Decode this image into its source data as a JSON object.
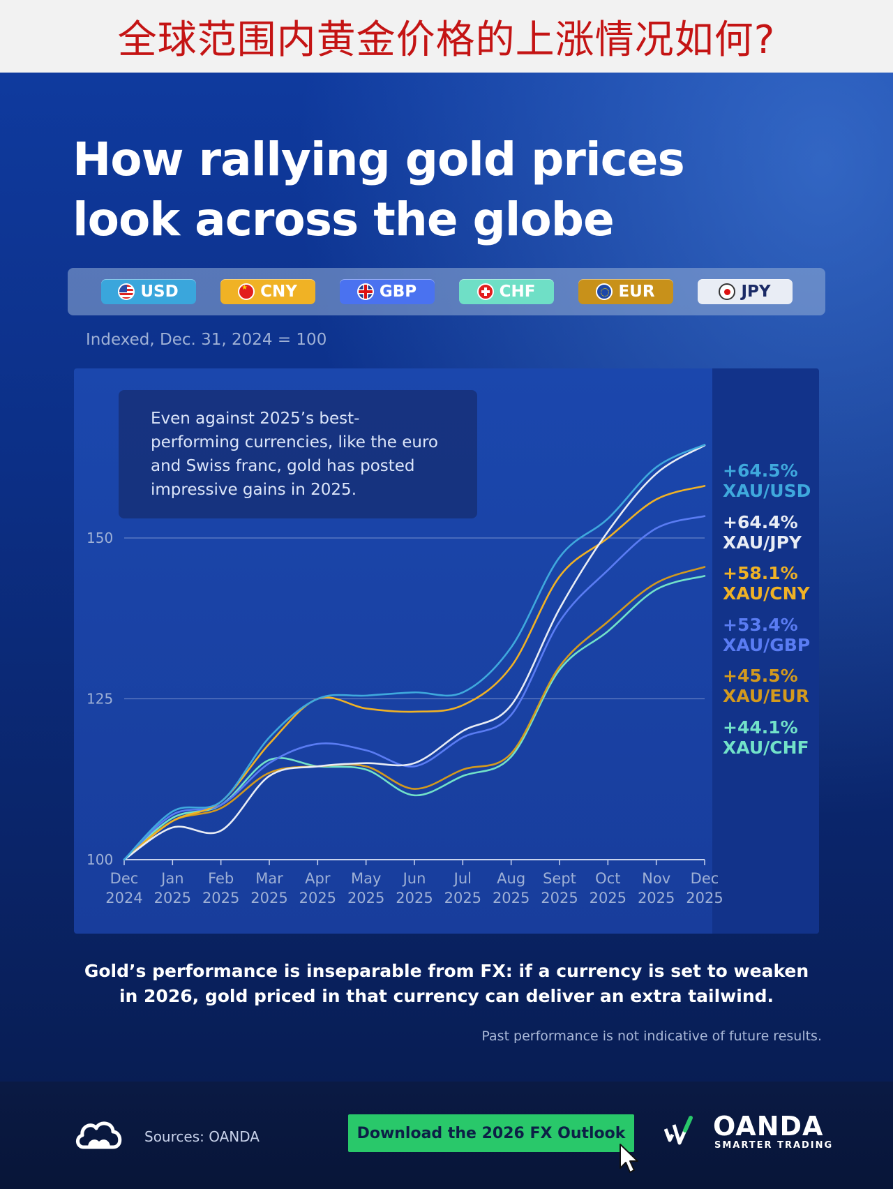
{
  "banner": {
    "text": "全球范围内黄金价格的上涨情况如何?"
  },
  "title_line1": "How rallying gold prices",
  "title_line2": "look across the globe",
  "legend": [
    {
      "label": "USD",
      "color": "#3aa6dc",
      "flag": "us-flag-icon"
    },
    {
      "label": "CNY",
      "color": "#f0b225",
      "flag": "cn-flag-icon"
    },
    {
      "label": "GBP",
      "color": "#4a72f0",
      "flag": "uk-flag-icon"
    },
    {
      "label": "CHF",
      "color": "#6fdfc6",
      "flag": "ch-flag-icon"
    },
    {
      "label": "EUR",
      "color": "#c8911a",
      "flag": "eu-flag-icon"
    },
    {
      "label": "JPY",
      "color": "#e9edf5",
      "flag": "jp-flag-icon"
    }
  ],
  "subtitle": "Indexed, Dec. 31, 2024 = 100",
  "annotation": "Even against 2025’s best-performing currencies, like the euro and Swiss franc, gold has posted impressive gains in 2025.",
  "chart_data": {
    "type": "line",
    "ylabel": "",
    "xlabel": "",
    "ylim": [
      100,
      165
    ],
    "yticks": [
      "100",
      "125",
      "150"
    ],
    "x": [
      [
        "Dec",
        "2024"
      ],
      [
        "Jan",
        "2025"
      ],
      [
        "Feb",
        "2025"
      ],
      [
        "Mar",
        "2025"
      ],
      [
        "Apr",
        "2025"
      ],
      [
        "May",
        "2025"
      ],
      [
        "Jun",
        "2025"
      ],
      [
        "Jul",
        "2025"
      ],
      [
        "Aug",
        "2025"
      ],
      [
        "Sept",
        "2025"
      ],
      [
        "Oct",
        "2025"
      ],
      [
        "Nov",
        "2025"
      ],
      [
        "Dec",
        "2025"
      ]
    ],
    "series": [
      {
        "name": "XAU/USD",
        "change": "+64.5%",
        "color": "#3fa9dd",
        "values": [
          100,
          107.5,
          109,
          119,
          125,
          125.5,
          126,
          126,
          133,
          147,
          153,
          161,
          164.5
        ]
      },
      {
        "name": "XAU/JPY",
        "change": "+64.4%",
        "color": "#e9edf5",
        "values": [
          100,
          105,
          104.5,
          113,
          114.5,
          115,
          115,
          120,
          124,
          139,
          151,
          160,
          164.4
        ]
      },
      {
        "name": "XAU/CNY",
        "change": "+58.1%",
        "color": "#f0b225",
        "values": [
          100,
          106,
          109,
          118,
          125,
          123.5,
          123,
          124,
          130,
          144,
          150,
          156,
          158.1
        ]
      },
      {
        "name": "XAU/GBP",
        "change": "+53.4%",
        "color": "#5a7cf3",
        "values": [
          100,
          107,
          108.5,
          115,
          118,
          117,
          114.5,
          119,
          122.5,
          137,
          145,
          151.5,
          153.4
        ]
      },
      {
        "name": "XAU/EUR",
        "change": "+45.5%",
        "color": "#d39a1e",
        "values": [
          100,
          106,
          108,
          113.5,
          114.5,
          114.5,
          111,
          114,
          116.5,
          130,
          137,
          143,
          145.5
        ]
      },
      {
        "name": "XAU/CHF",
        "change": "+44.1%",
        "color": "#72e2c9",
        "values": [
          100,
          106.5,
          108.5,
          115.5,
          114.5,
          114,
          110,
          113,
          116,
          129.5,
          135.5,
          142,
          144.1
        ]
      }
    ]
  },
  "footer_text_line1": "Gold’s performance is inseparable from FX: if a currency is set to weaken",
  "footer_text_line2": "in 2026, gold priced in that currency can deliver an extra tailwind.",
  "disclaimer": "Past performance is not indicative of future results.",
  "sources": "Sources: OANDA",
  "download_button": "Download the 2026 FX Outlook",
  "logo": {
    "name": "OANDA",
    "tagline": "SMARTER TRADING"
  }
}
